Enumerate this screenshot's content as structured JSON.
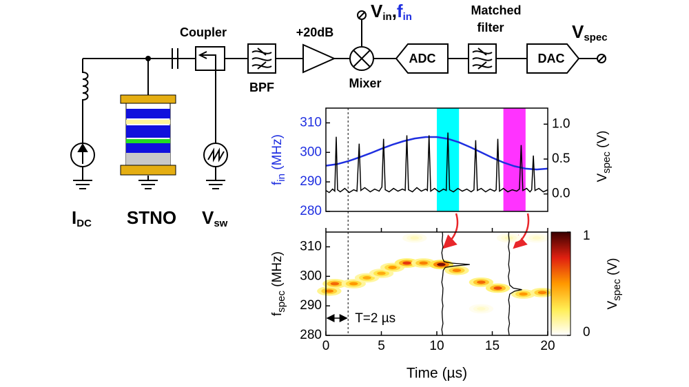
{
  "diagram": {
    "coupler": "Coupler",
    "bpf": "BPF",
    "gain": "+20dB",
    "vin": {
      "v": "V",
      "sub": "in",
      "comma": ",",
      "f": "f",
      "fsub": "in"
    },
    "mixer": "Mixer",
    "adc": "ADC",
    "filter": [
      "Matched",
      "filter"
    ],
    "dac": "DAC",
    "vspec": {
      "v": "V",
      "sub": "spec"
    },
    "idc": {
      "v": "I",
      "sub": "DC"
    },
    "stno": "STNO",
    "vsw": {
      "v": "V",
      "sub": "sw"
    }
  },
  "chart_data": [
    {
      "type": "line",
      "ylabel": {
        "main": "f",
        "sub": "in",
        "unit": " (MHz)"
      },
      "y2label": {
        "main": "V",
        "sub": "spec",
        "unit": " (V)"
      },
      "xlim": [
        0,
        20
      ],
      "ylim": [
        280,
        315
      ],
      "yticks": [
        280,
        290,
        300,
        310
      ],
      "y2lim": [
        -0.25,
        1.23
      ],
      "y2ticks": [
        {
          "value": 0,
          "label": "0.0"
        },
        {
          "value": 0.5,
          "label": "0.5"
        },
        {
          "value": 1,
          "label": "1.0"
        }
      ],
      "spans": [
        {
          "x": [
            10,
            12
          ],
          "color": "#00ffff"
        },
        {
          "x": [
            16,
            18
          ],
          "color": "#ff33ff"
        }
      ],
      "vline": 2,
      "series": [
        {
          "color": "#1f2fe0",
          "x": [
            0,
            1,
            2,
            3,
            4,
            5,
            6,
            7,
            8,
            9,
            10,
            11,
            12,
            13,
            14,
            15,
            16,
            17,
            18,
            19,
            20
          ],
          "values": [
            295.5,
            296,
            297,
            298.3,
            299.7,
            301.2,
            302.6,
            303.8,
            304.7,
            305.2,
            305.2,
            304.6,
            303.4,
            301.8,
            300,
            298.2,
            296.6,
            295.3,
            294.5,
            294.2,
            294.5
          ]
        },
        {
          "color": "#000000",
          "axis": "y2",
          "x": [
            0,
            0.3,
            0.6,
            0.8,
            0.93,
            1.05,
            1.3,
            1.7,
            2.1,
            2.5,
            2.8,
            3,
            3.15,
            3.5,
            4,
            4.4,
            4.8,
            5.05,
            5.2,
            5.35,
            5.7,
            6.1,
            6.5,
            6.9,
            7.15,
            7.3,
            7.45,
            7.8,
            8.2,
            8.6,
            9,
            9.15,
            9.3,
            9.45,
            9.8,
            10.2,
            10.6,
            10.85,
            11,
            11.15,
            11.5,
            11.9,
            12.3,
            12.7,
            13.1,
            13.35,
            13.5,
            13.65,
            14,
            14.4,
            14.8,
            15.2,
            15.35,
            15.5,
            15.65,
            16,
            16.4,
            16.8,
            17.2,
            17.45,
            17.6,
            17.75,
            18.1,
            18.4,
            18.55,
            18.7,
            18.85,
            19.2,
            19.6,
            20
          ],
          "values": [
            0.05,
            0.02,
            0.07,
            0.04,
            0.82,
            0.06,
            0.03,
            0.08,
            0.02,
            0.06,
            0.04,
            0.72,
            0.05,
            0.09,
            0.03,
            0.07,
            0.04,
            0.1,
            0.79,
            0.06,
            0.03,
            0.08,
            0.04,
            0.07,
            0.05,
            0.84,
            0.06,
            0.03,
            0.09,
            0.04,
            0.07,
            0.05,
            0.84,
            0.04,
            0.08,
            0.03,
            0.07,
            0.05,
            0.88,
            0.06,
            0.03,
            0.08,
            0.04,
            0.07,
            0.03,
            0.06,
            0.77,
            0.05,
            0.08,
            0.03,
            0.07,
            0.04,
            0.06,
            0.79,
            0.04,
            0.08,
            0.03,
            0.06,
            0.04,
            0.07,
            0.7,
            0.05,
            0.08,
            0.03,
            0.06,
            0.55,
            0.05,
            0.08,
            0.03,
            0.06
          ]
        }
      ]
    },
    {
      "type": "heatmap",
      "ylabel": {
        "main": "f",
        "sub": "spec",
        "unit": " (MHz)"
      },
      "xlabel": "Time (µs)",
      "clabel": {
        "main": "V",
        "sub": "spec",
        "unit": " (V)"
      },
      "annotation": "T=2 µs",
      "xlim": [
        0,
        20
      ],
      "xticks": [
        0,
        5,
        10,
        15,
        20
      ],
      "ylim": [
        280,
        315
      ],
      "yticks": [
        280,
        290,
        300,
        310
      ],
      "clim": [
        0,
        1
      ],
      "cticks": [
        0,
        1
      ],
      "points": [
        {
          "x": 0.3,
          "y": 295,
          "value": 0.55
        },
        {
          "x": 0.8,
          "y": 297.5,
          "value": 0.6
        },
        {
          "x": 2.5,
          "y": 297.5,
          "value": 0.5
        },
        {
          "x": 3.7,
          "y": 299.5,
          "value": 0.45
        },
        {
          "x": 5,
          "y": 301,
          "value": 0.45
        },
        {
          "x": 6,
          "y": 303,
          "value": 0.5
        },
        {
          "x": 7.3,
          "y": 304.5,
          "value": 0.7
        },
        {
          "x": 8.8,
          "y": 304.5,
          "value": 0.55
        },
        {
          "x": 10.4,
          "y": 304,
          "value": 0.9
        },
        {
          "x": 11.8,
          "y": 302,
          "value": 0.55
        },
        {
          "x": 14,
          "y": 298,
          "value": 0.6
        },
        {
          "x": 15.5,
          "y": 296,
          "value": 0.65
        },
        {
          "x": 17.8,
          "y": 294,
          "value": 0.5
        },
        {
          "x": 19.5,
          "y": 294.5,
          "value": 0.55
        },
        {
          "x": 8,
          "y": 313,
          "value": 0.1
        },
        {
          "x": 16.5,
          "y": 313,
          "value": 0.1
        },
        {
          "x": 14,
          "y": 289,
          "value": 0.08
        },
        {
          "x": 19,
          "y": 313,
          "value": 0.08
        }
      ],
      "slices": [
        {
          "x": 10.5,
          "freq": [
            280,
            282,
            284,
            286,
            288,
            290,
            292,
            294,
            296,
            298,
            300,
            302,
            303,
            303.5,
            304,
            304.5,
            305,
            306,
            308,
            310,
            312,
            314,
            315
          ],
          "values": [
            0.01,
            -0.02,
            0.02,
            0,
            -0.01,
            0.02,
            -0.01,
            0.01,
            0.02,
            -0.02,
            0.01,
            0.03,
            0.1,
            0.4,
            0.95,
            0.3,
            0.06,
            0.01,
            -0.02,
            0.02,
            -0.01,
            0.01,
            0
          ]
        },
        {
          "x": 16.5,
          "freq": [
            280,
            282,
            284,
            286,
            288,
            290,
            292,
            294,
            295,
            295.5,
            296,
            297,
            298,
            300,
            302,
            304,
            306,
            308,
            310,
            312,
            314,
            315
          ],
          "values": [
            0.01,
            -0.02,
            0.02,
            -0.01,
            0.01,
            0.02,
            -0.01,
            0.03,
            0.2,
            0.45,
            0.15,
            0.03,
            0.01,
            -0.02,
            0.02,
            -0.01,
            0.01,
            0.02,
            -0.02,
            0.01,
            -0.01,
            0
          ]
        }
      ]
    }
  ]
}
